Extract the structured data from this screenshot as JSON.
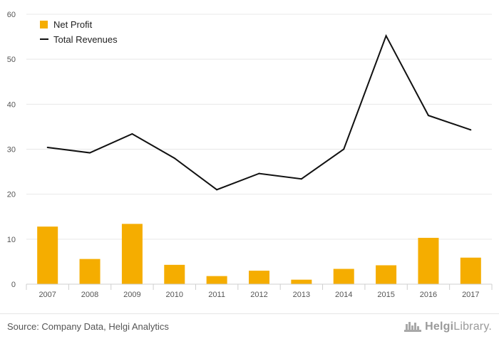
{
  "chart_data": {
    "type": "bar",
    "categories": [
      "2007",
      "2008",
      "2009",
      "2010",
      "2011",
      "2012",
      "2013",
      "2014",
      "2015",
      "2016",
      "2017"
    ],
    "series": [
      {
        "name": "Net Profit",
        "kind": "bar",
        "color": "#f5ad00",
        "values": [
          12.8,
          5.6,
          13.4,
          4.3,
          1.8,
          3.0,
          1.0,
          3.4,
          4.2,
          10.3,
          5.9
        ]
      },
      {
        "name": "Total Revenues",
        "kind": "line",
        "color": "#111111",
        "values": [
          30.4,
          29.2,
          33.4,
          28.0,
          21.0,
          24.6,
          23.4,
          30.0,
          55.2,
          37.5,
          34.3
        ]
      }
    ],
    "ylim": [
      0,
      60
    ],
    "yticks": [
      0,
      10,
      20,
      30,
      40,
      50,
      60
    ],
    "grid": true,
    "legend_position": "top-left"
  },
  "footer": {
    "source": "Source: Company Data, Helgi Analytics",
    "brand_prefix": "Helgi",
    "brand_suffix": "Library."
  }
}
